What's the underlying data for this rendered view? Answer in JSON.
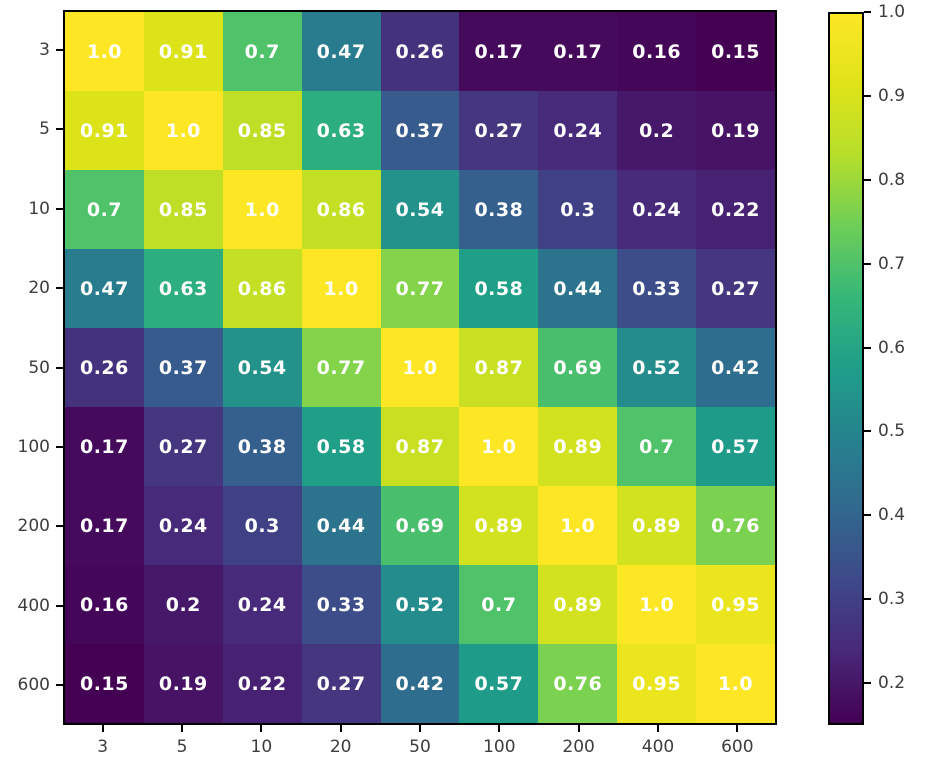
{
  "chart_data": {
    "type": "heatmap",
    "title": "",
    "xlabel": "",
    "ylabel": "",
    "x_categories": [
      "3",
      "5",
      "10",
      "20",
      "50",
      "100",
      "200",
      "400",
      "600"
    ],
    "y_categories": [
      "3",
      "5",
      "10",
      "20",
      "50",
      "100",
      "200",
      "400",
      "600"
    ],
    "matrix": [
      [
        "1.0",
        "0.91",
        "0.7",
        "0.47",
        "0.26",
        "0.17",
        "0.17",
        "0.16",
        "0.15"
      ],
      [
        "0.91",
        "1.0",
        "0.85",
        "0.63",
        "0.37",
        "0.27",
        "0.24",
        "0.2",
        "0.19"
      ],
      [
        "0.7",
        "0.85",
        "1.0",
        "0.86",
        "0.54",
        "0.38",
        "0.3",
        "0.24",
        "0.22"
      ],
      [
        "0.47",
        "0.63",
        "0.86",
        "1.0",
        "0.77",
        "0.58",
        "0.44",
        "0.33",
        "0.27"
      ],
      [
        "0.26",
        "0.37",
        "0.54",
        "0.77",
        "1.0",
        "0.87",
        "0.69",
        "0.52",
        "0.42"
      ],
      [
        "0.17",
        "0.27",
        "0.38",
        "0.58",
        "0.87",
        "1.0",
        "0.89",
        "0.7",
        "0.57"
      ],
      [
        "0.17",
        "0.24",
        "0.3",
        "0.44",
        "0.69",
        "0.89",
        "1.0",
        "0.89",
        "0.76"
      ],
      [
        "0.16",
        "0.2",
        "0.24",
        "0.33",
        "0.52",
        "0.7",
        "0.89",
        "1.0",
        "0.95"
      ],
      [
        "0.15",
        "0.19",
        "0.22",
        "0.27",
        "0.42",
        "0.57",
        "0.76",
        "0.95",
        "1.0"
      ]
    ],
    "vmin": 0.15,
    "vmax": 1.0,
    "grid": false,
    "legend_position": "right-colorbar",
    "colorbar_ticks": [
      "1.0",
      "0.9",
      "0.8",
      "0.7",
      "0.6",
      "0.5",
      "0.4",
      "0.3",
      "0.2"
    ]
  },
  "colors": {
    "background": "#ffffff",
    "spine": "#000000",
    "annotation_text": "#ffffff",
    "tick_label": "#3d3d3d",
    "viridis_stops": [
      "#440154",
      "#482878",
      "#3e4989",
      "#31688e",
      "#26828e",
      "#1f9e89",
      "#35b779",
      "#6ece58",
      "#b5de2b",
      "#dfe318",
      "#fde725"
    ]
  }
}
